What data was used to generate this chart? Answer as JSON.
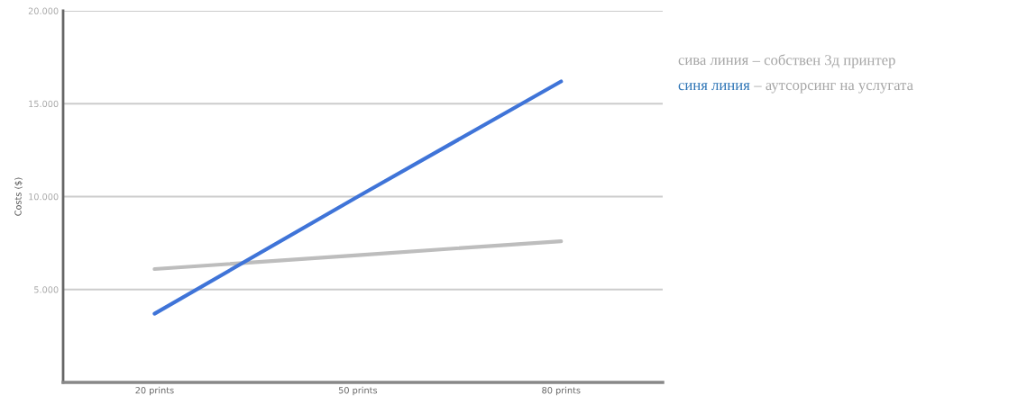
{
  "chart_data": {
    "type": "line",
    "ylabel": "Costs ($)",
    "categories": [
      "20 prints",
      "50 prints",
      "80 prints"
    ],
    "series": [
      {
        "color": "#bdbdbd",
        "values": [
          6100,
          6850,
          7600
        ]
      },
      {
        "color": "#3f74d8",
        "values": [
          3700,
          10000,
          16200
        ]
      }
    ],
    "ylim": [
      0,
      20000
    ],
    "yticks": [
      {
        "value": 5000,
        "label": "5.000"
      },
      {
        "value": 10000,
        "label": "10.000"
      },
      {
        "value": 15000,
        "label": "15.000"
      },
      {
        "value": 20000,
        "label": "20.000"
      }
    ],
    "grid": "y",
    "marker": "none",
    "line_style": "solid",
    "annotations": [
      "сива линия",
      " – собствен 3д принтер",
      "синя линия",
      " – аутсорсинг на услугата"
    ]
  }
}
